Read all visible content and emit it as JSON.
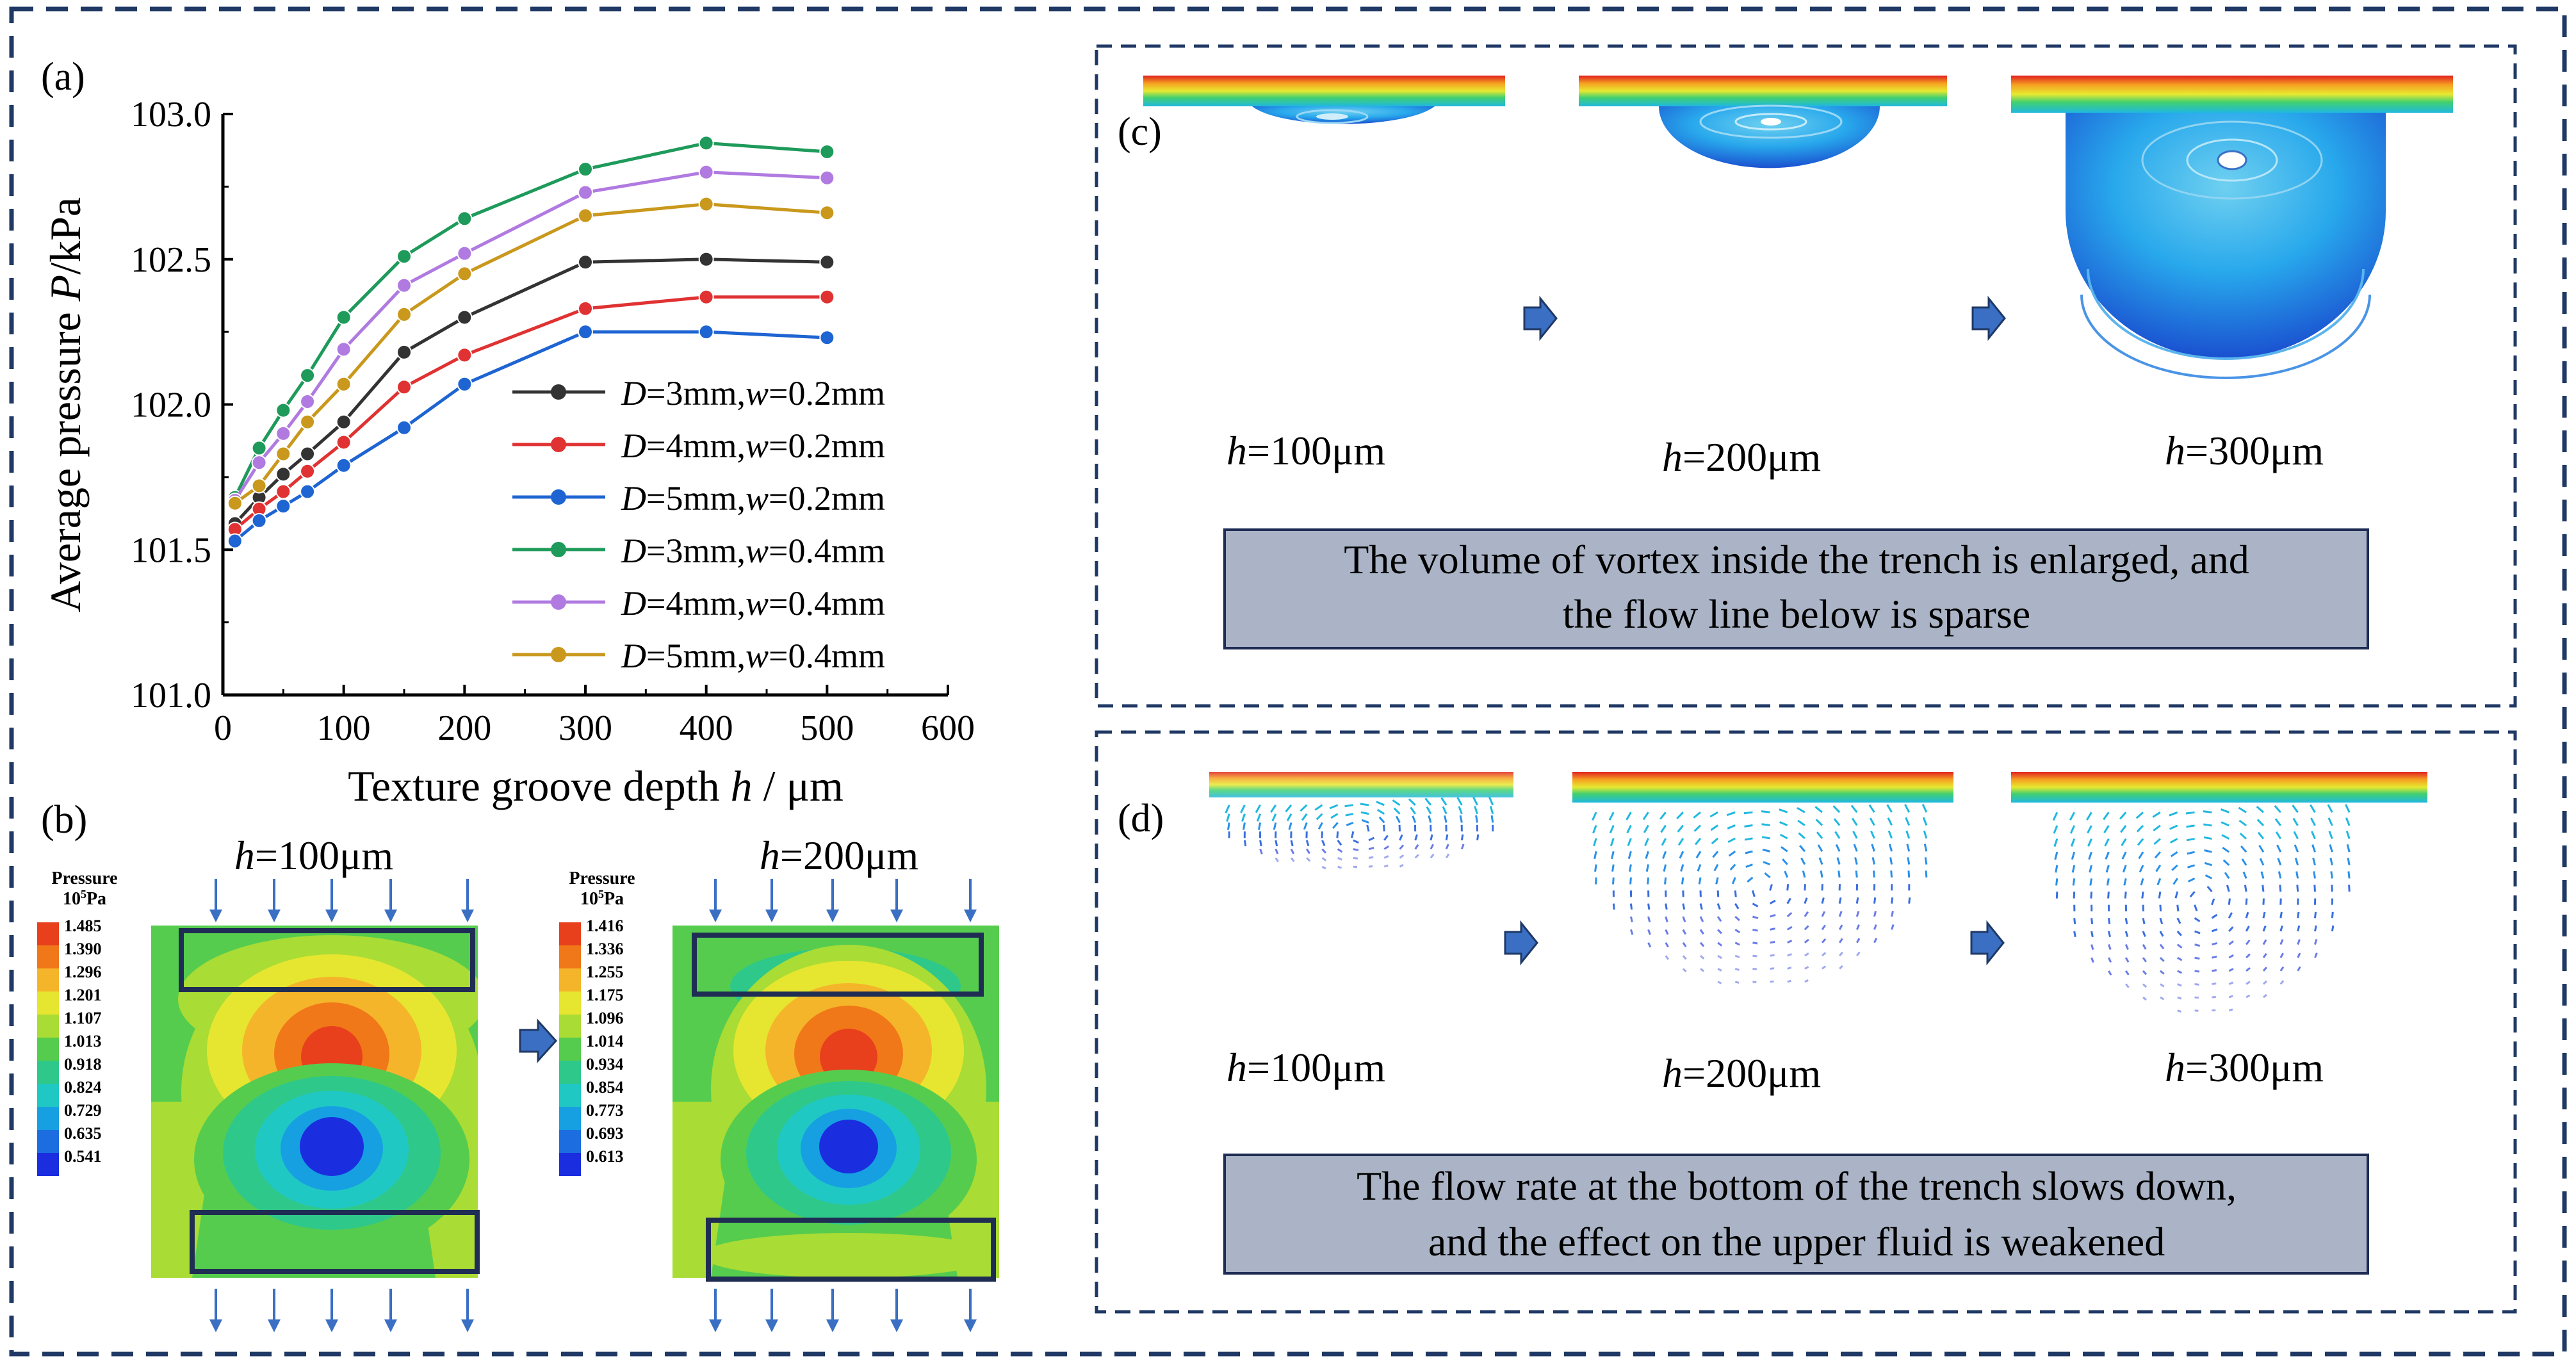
{
  "panel_labels": {
    "a": "(a)",
    "b": "(b)",
    "c": "(c)",
    "d": "(d)"
  },
  "colors": {
    "frame": "#1f3864",
    "caption_bg": "#aab4c6",
    "arrow": "#3a6fc4",
    "series": [
      "#333333",
      "#e03232",
      "#1e64d2",
      "#1e9a5a",
      "#b07ae0",
      "#c9981c"
    ]
  },
  "chart_data": {
    "type": "line",
    "x": [
      10,
      30,
      50,
      70,
      100,
      150,
      200,
      300,
      400,
      500
    ],
    "series": [
      {
        "name": "D=3mm,w=0.2mm",
        "D": "D",
        "d_val": "=3mm,",
        "w": "w",
        "w_val": "=0.2mm",
        "values": [
          101.59,
          101.68,
          101.76,
          101.83,
          101.94,
          102.18,
          102.3,
          102.49,
          102.5,
          102.49
        ]
      },
      {
        "name": "D=4mm,w=0.2mm",
        "D": "D",
        "d_val": "=4mm,",
        "w": "w",
        "w_val": "=0.2mm",
        "values": [
          101.57,
          101.64,
          101.7,
          101.77,
          101.87,
          102.06,
          102.17,
          102.33,
          102.37,
          102.37
        ]
      },
      {
        "name": "D=5mm,w=0.2mm",
        "D": "D",
        "d_val": "=5mm,",
        "w": "w",
        "w_val": "=0.2mm",
        "values": [
          101.53,
          101.6,
          101.65,
          101.7,
          101.79,
          101.92,
          102.07,
          102.25,
          102.25,
          102.23
        ]
      },
      {
        "name": "D=3mm,w=0.4mm",
        "D": "D",
        "d_val": "=3mm,",
        "w": "w",
        "w_val": "=0.4mm",
        "values": [
          101.68,
          101.85,
          101.98,
          102.1,
          102.3,
          102.51,
          102.64,
          102.81,
          102.9,
          102.87
        ]
      },
      {
        "name": "D=4mm,w=0.4mm",
        "D": "D",
        "d_val": "=4mm,",
        "w": "w",
        "w_val": "=0.4mm",
        "values": [
          101.67,
          101.8,
          101.9,
          102.01,
          102.19,
          102.41,
          102.52,
          102.73,
          102.8,
          102.78
        ]
      },
      {
        "name": "D=5mm,w=0.4mm",
        "D": "D",
        "d_val": "=5mm,",
        "w": "w",
        "w_val": "=0.4mm",
        "values": [
          101.66,
          101.72,
          101.83,
          101.94,
          102.07,
          102.31,
          102.45,
          102.65,
          102.69,
          102.66
        ]
      }
    ],
    "xlabel": {
      "prefix": "Texture groove depth ",
      "var": "h",
      "suffix": " / μm"
    },
    "ylabel": {
      "prefix": "Average pressure ",
      "var": "P",
      "suffix": "/kPa"
    },
    "xlim": [
      0,
      600
    ],
    "ylim": [
      101.0,
      103.0
    ],
    "xticks": [
      "0",
      "100",
      "200",
      "300",
      "400",
      "500",
      "600"
    ],
    "yticks": [
      "101.0",
      "101.5",
      "102.0",
      "102.5",
      "103.0"
    ],
    "legend_position": "center-right"
  },
  "panel_b": {
    "scale_title": "Pressure",
    "scale_unit": "10",
    "scale_unit_sup": "5",
    "scale_unit_end": "Pa",
    "scale1": [
      "1.485",
      "1.390",
      "1.296",
      "1.201",
      "1.107",
      "1.013",
      "0.918",
      "0.824",
      "0.729",
      "0.635",
      "0.541"
    ],
    "scale2": [
      "1.416",
      "1.336",
      "1.255",
      "1.175",
      "1.096",
      "1.014",
      "0.934",
      "0.854",
      "0.773",
      "0.693",
      "0.613"
    ],
    "scale_colors": [
      "#e8401c",
      "#f07818",
      "#f5b52a",
      "#e6e630",
      "#a9dc34",
      "#56cc4e",
      "#2ec88a",
      "#20c8c4",
      "#16a0e2",
      "#1c6ee0",
      "#1a2ee0"
    ],
    "label1": {
      "var": "h",
      "val": "=100μm"
    },
    "label2": {
      "var": "h",
      "val": "=200μm"
    }
  },
  "panel_c": {
    "labels": [
      {
        "var": "h",
        "val": "=100μm"
      },
      {
        "var": "h",
        "val": "=200μm"
      },
      {
        "var": "h",
        "val": "=300μm"
      }
    ],
    "caption_line1": "The volume of vortex inside the trench is enlarged, and",
    "caption_line2": "the flow line below is sparse"
  },
  "panel_d": {
    "labels": [
      {
        "var": "h",
        "val": "=100μm"
      },
      {
        "var": "h",
        "val": "=200μm"
      },
      {
        "var": "h",
        "val": "=300μm"
      }
    ],
    "caption_line1": "The flow rate at the bottom of the trench slows down,",
    "caption_line2": "and the effect on the upper fluid is weakened"
  }
}
